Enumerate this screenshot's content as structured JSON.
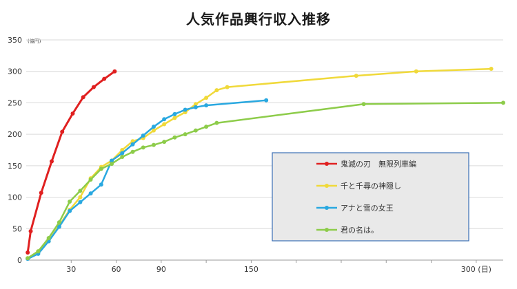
{
  "chart_data": {
    "type": "line",
    "title": "人気作品興行収入推移",
    "y_unit": "(億円)",
    "x_unit_suffix": "(日)",
    "xlim": [
      0,
      318
    ],
    "ylim": [
      0,
      350
    ],
    "y_ticks": [
      0,
      50,
      100,
      150,
      200,
      250,
      300,
      350
    ],
    "x_ticks": [
      {
        "value": 30,
        "label": "30"
      },
      {
        "value": 60,
        "label": "60"
      },
      {
        "value": 90,
        "label": "90"
      },
      {
        "value": 150,
        "label": "150"
      },
      {
        "value": 300,
        "label": "300"
      }
    ],
    "grid": "horizontal",
    "legend": "bottom-right",
    "series": [
      {
        "name": "鬼滅の刃　無限列車編",
        "color": "#e02020",
        "x": [
          1,
          3,
          10,
          17,
          24,
          31,
          38,
          45,
          52,
          59
        ],
        "y": [
          12,
          46,
          107,
          157,
          204,
          233,
          259,
          275,
          288,
          300
        ]
      },
      {
        "name": "千と千尋の神隠し",
        "color": "#f0d93a",
        "x": [
          1,
          8,
          15,
          22,
          29,
          36,
          43,
          50,
          57,
          64,
          71,
          78,
          85,
          92,
          99,
          106,
          113,
          120,
          127,
          134,
          220,
          260,
          310
        ],
        "y": [
          3,
          14,
          30,
          55,
          80,
          100,
          130,
          148,
          158,
          175,
          189,
          194,
          206,
          216,
          226,
          235,
          248,
          258,
          270,
          275,
          293,
          300,
          304
        ]
      },
      {
        "name": "アナと雪の女王",
        "color": "#29a8e0",
        "x": [
          1,
          8,
          15,
          22,
          29,
          36,
          43,
          50,
          57,
          64,
          71,
          78,
          85,
          92,
          99,
          106,
          113,
          120,
          160
        ],
        "y": [
          2,
          10,
          30,
          53,
          78,
          92,
          106,
          120,
          158,
          170,
          184,
          198,
          212,
          224,
          232,
          239,
          243,
          246,
          254
        ]
      },
      {
        "name": "君の名は。",
        "color": "#8dcc4a",
        "x": [
          1,
          8,
          15,
          22,
          29,
          36,
          43,
          50,
          57,
          64,
          71,
          78,
          85,
          92,
          99,
          106,
          113,
          120,
          127,
          225,
          318
        ],
        "y": [
          3,
          14,
          35,
          60,
          93,
          110,
          128,
          145,
          153,
          164,
          172,
          179,
          183,
          188,
          195,
          200,
          206,
          212,
          218,
          248,
          250
        ]
      }
    ]
  }
}
